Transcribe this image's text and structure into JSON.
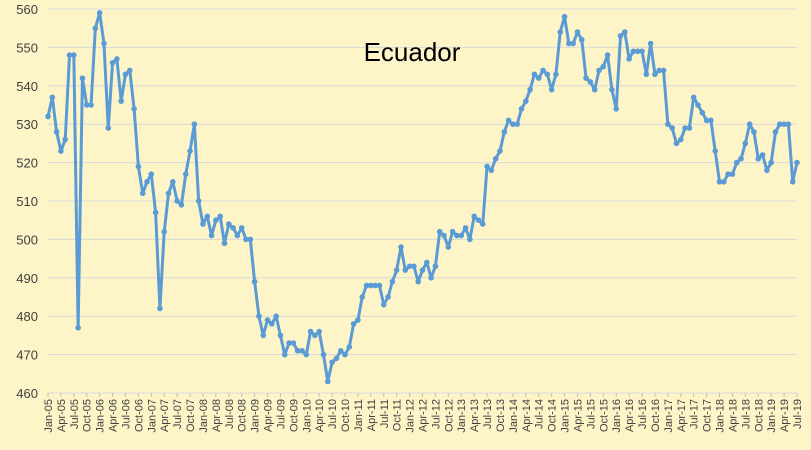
{
  "chart_data": {
    "type": "line",
    "title": "Ecuador",
    "xlabel": "",
    "ylabel": "",
    "ylim": [
      460,
      560
    ],
    "yticks": [
      460,
      470,
      480,
      490,
      500,
      510,
      520,
      530,
      540,
      550,
      560
    ],
    "grid": "horizontal",
    "line_color": "#5b9bd5",
    "background_color": "#fdf5c8",
    "x_tick_labels": [
      "Jan-05",
      "Apr-05",
      "Jul-05",
      "Oct-05",
      "Jan-06",
      "Apr-06",
      "Jul-06",
      "Oct-06",
      "Jan-07",
      "Apr-07",
      "Jul-07",
      "Oct-07",
      "Jan-08",
      "Apr-08",
      "Jul-08",
      "Oct-08",
      "Jan-09",
      "Apr-09",
      "Jul-09",
      "Oct-09",
      "Jan-10",
      "Apr-10",
      "Jul-10",
      "Oct-10",
      "Jan-11",
      "Apr-11",
      "Jul-11",
      "Oct-11",
      "Jan-12",
      "Apr-12",
      "Jul-12",
      "Oct-12",
      "Jan-13",
      "Apr-13",
      "Jul-13",
      "Oct-13",
      "Jan-14",
      "Apr-14",
      "Jul-14",
      "Oct-14",
      "Jan-15",
      "Apr-15",
      "Jul-15",
      "Oct-15",
      "Jan-16",
      "Apr-16",
      "Jul-16",
      "Oct-16",
      "Jan-17",
      "Apr-17",
      "Jul-17",
      "Oct-17",
      "Jan-18",
      "Apr-18",
      "Jul-18",
      "Oct-18",
      "Jan-19",
      "Apr-19",
      "Jul-19"
    ],
    "series": [
      {
        "values": [
          532,
          537,
          528,
          523,
          526,
          548,
          548,
          477,
          542,
          535,
          535,
          555,
          559,
          551,
          529,
          546,
          547,
          536,
          543,
          544,
          534,
          519,
          512,
          515,
          517,
          507,
          482,
          502,
          512,
          515,
          510,
          509,
          517,
          523,
          530,
          510,
          504,
          506,
          501,
          505,
          506,
          499,
          504,
          503,
          501,
          503,
          500,
          500,
          489,
          480,
          475,
          479,
          478,
          480,
          475,
          470,
          473,
          473,
          471,
          471,
          470,
          476,
          475,
          476,
          470,
          463,
          468,
          469,
          471,
          470,
          472,
          478,
          479,
          485,
          488,
          488,
          488,
          488,
          483,
          485,
          489,
          492,
          498,
          492,
          493,
          493,
          489,
          492,
          494,
          490,
          493,
          502,
          501,
          498,
          502,
          501,
          501,
          503,
          500,
          506,
          505,
          504,
          519,
          518,
          521,
          523,
          528,
          531,
          530,
          530,
          534,
          536,
          539,
          543,
          542,
          544,
          543,
          539,
          543,
          554,
          558,
          551,
          551,
          554,
          552,
          542,
          541,
          539,
          544,
          545,
          548,
          539,
          534,
          553,
          554,
          547,
          549,
          549,
          549,
          543,
          551,
          543,
          544,
          544,
          530,
          529,
          525,
          526,
          529,
          529,
          537,
          535,
          533,
          531,
          531,
          523,
          515,
          515,
          517,
          517,
          520,
          521,
          525,
          530,
          528,
          521,
          522,
          518,
          520,
          528,
          530,
          530,
          530,
          515,
          520
        ]
      }
    ]
  }
}
